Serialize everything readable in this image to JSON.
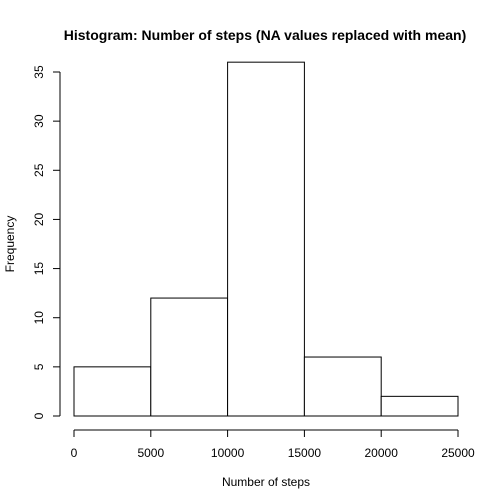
{
  "chart_data": {
    "type": "bar",
    "title": "Histogram: Number of steps (NA values replaced with mean)",
    "xlabel": "Number of steps",
    "ylabel": "Frequency",
    "bins": [
      {
        "start": 0,
        "end": 5000,
        "count": 5
      },
      {
        "start": 5000,
        "end": 10000,
        "count": 12
      },
      {
        "start": 10000,
        "end": 15000,
        "count": 36
      },
      {
        "start": 15000,
        "end": 20000,
        "count": 6
      },
      {
        "start": 20000,
        "end": 25000,
        "count": 2
      }
    ],
    "xlim": [
      0,
      25000
    ],
    "ylim": [
      0,
      35
    ],
    "x_ticks": [
      "0",
      "5000",
      "10000",
      "15000",
      "20000",
      "25000"
    ],
    "y_ticks": [
      "0",
      "5",
      "10",
      "15",
      "20",
      "25",
      "30",
      "35"
    ],
    "grid": false,
    "colors": {
      "bar_fill": "#ffffff",
      "bar_stroke": "#000000"
    }
  }
}
